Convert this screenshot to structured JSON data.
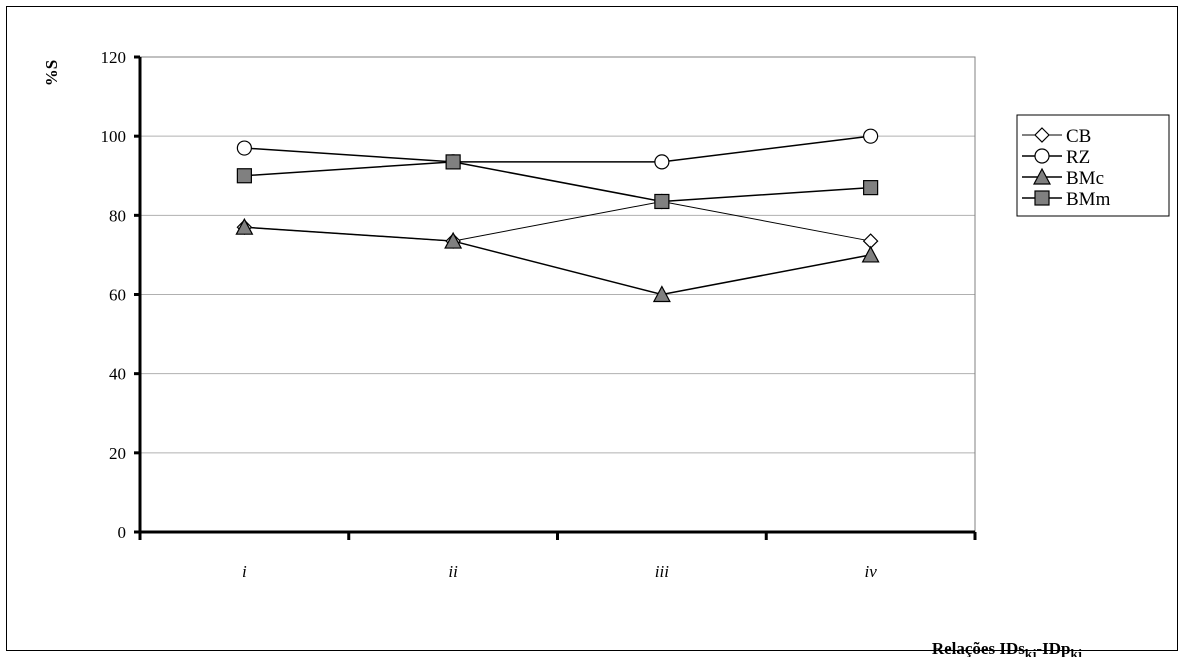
{
  "chart_data": {
    "type": "line",
    "ylabel": "%S",
    "xlabel_parts": {
      "prefix": "Relações ",
      "a": "IDs",
      "a_sub": "kj",
      "sep": "-",
      "b": "IDp",
      "b_sub": "kj"
    },
    "categories": [
      "i",
      "ii",
      "iii",
      "iv"
    ],
    "ylim": [
      0,
      120
    ],
    "yticks": [
      0,
      20,
      40,
      60,
      80,
      100,
      120
    ],
    "grid": true,
    "legend_position": "right",
    "series": [
      {
        "name": "CB",
        "marker": "diamond",
        "fill": "#ffffff",
        "line_width": 1.0,
        "values": [
          77,
          73.5,
          83.5,
          73.5
        ]
      },
      {
        "name": "RZ",
        "marker": "circle",
        "fill": "#ffffff",
        "line_width": 1.5,
        "values": [
          97,
          93.5,
          93.5,
          100
        ]
      },
      {
        "name": "BMc",
        "marker": "triangle",
        "fill": "#808080",
        "line_width": 1.5,
        "values": [
          77,
          73.5,
          60,
          70
        ]
      },
      {
        "name": "BMm",
        "marker": "square",
        "fill": "#808080",
        "line_width": 1.5,
        "values": [
          90,
          93.5,
          83.5,
          87
        ]
      }
    ]
  }
}
